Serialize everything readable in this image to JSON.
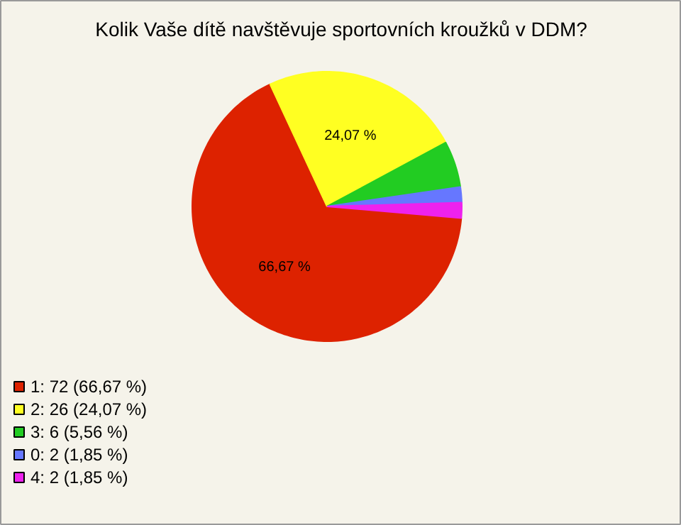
{
  "chart_data": {
    "type": "pie",
    "title": "Kolik Vaše dítě navštěvuje sportovních kroužků v DDM?",
    "categories": [
      "1: 72 (66,67 %)",
      "2: 26 (24,07 %)",
      "3: 6 (5,56 %)",
      "0: 2 (1,85 %)",
      "4: 2 (1,85 %)"
    ],
    "values": [
      66.67,
      24.07,
      5.56,
      1.85,
      1.85
    ],
    "colors": [
      "#dd2200",
      "#ffff22",
      "#22cc22",
      "#6677ff",
      "#ee22ee"
    ],
    "value_labels": [
      "66,67 %",
      "24,07 %",
      null,
      null,
      null
    ],
    "legend": "bottom left"
  }
}
